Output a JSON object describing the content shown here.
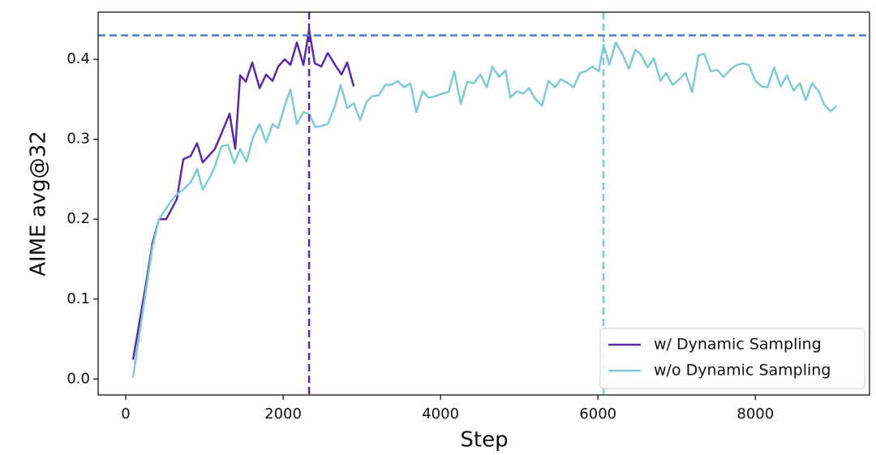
{
  "chart_data": {
    "type": "line",
    "xlabel": "Step",
    "ylabel": "AIME avg@32",
    "xlim": [
      -350,
      9450
    ],
    "ylim": [
      -0.02,
      0.459
    ],
    "xticks": [
      0,
      2000,
      4000,
      6000,
      8000
    ],
    "yticks": [
      {
        "value": 0,
        "label": "0.0"
      },
      0.1,
      0.2,
      0.3,
      0.4
    ],
    "legend": "lower right",
    "hlines": [
      {
        "value": 0.43,
        "color": "#4a7fcf"
      }
    ],
    "vlines": [
      {
        "value": 2330,
        "color": "#5b2aa6"
      },
      {
        "value": 6070,
        "color": "#7ecad6"
      }
    ],
    "series": [
      {
        "name": "w/ Dynamic Sampling",
        "color": "#5b2aa6",
        "x": [
          93,
          258,
          340,
          423,
          515,
          650,
          732,
          825,
          907,
          979,
          1134,
          1237,
          1320,
          1392,
          1454,
          1526,
          1608,
          1701,
          1784,
          1866,
          1938,
          2021,
          2093,
          2175,
          2258,
          2330,
          2402,
          2485,
          2567,
          2660,
          2742,
          2814,
          2897
        ],
        "values": [
          0.024,
          0.119,
          0.17,
          0.2,
          0.2,
          0.225,
          0.275,
          0.279,
          0.295,
          0.271,
          0.288,
          0.312,
          0.332,
          0.288,
          0.38,
          0.372,
          0.396,
          0.364,
          0.381,
          0.373,
          0.391,
          0.4,
          0.393,
          0.421,
          0.393,
          0.437,
          0.395,
          0.391,
          0.408,
          0.393,
          0.381,
          0.396,
          0.366
        ]
      },
      {
        "name": "w/o Dynamic Sampling",
        "color": "#7ecad6",
        "x": [
          93,
          340,
          423,
          567,
          649,
          732,
          825,
          907,
          979,
          1062,
          1134,
          1216,
          1299,
          1381,
          1454,
          1536,
          1619,
          1701,
          1784,
          1866,
          1938,
          2021,
          2093,
          2175,
          2258,
          2330,
          2412,
          2495,
          2567,
          2649,
          2732,
          2814,
          2897,
          2979,
          3062,
          3134,
          3216,
          3299,
          3381,
          3454,
          3536,
          3619,
          3691,
          3773,
          3856,
          3938,
          4021,
          4103,
          4175,
          4258,
          4340,
          4423,
          4505,
          4588,
          4660,
          4742,
          4825,
          4887,
          4969,
          5052,
          5124,
          5206,
          5289,
          5371,
          5454,
          5526,
          5608,
          5691,
          5773,
          5845,
          5928,
          6010,
          6072,
          6144,
          6227,
          6309,
          6392,
          6474,
          6546,
          6629,
          6711,
          6794,
          6866,
          6948,
          7031,
          7113,
          7196,
          7278,
          7350,
          7433,
          7515,
          7598,
          7680,
          7763,
          7845,
          7917,
          8000,
          8082,
          8155,
          8237,
          8320,
          8402,
          8485,
          8567,
          8639,
          8722,
          8804,
          8876,
          8959,
          9031
        ],
        "values": [
          0.002,
          0.165,
          0.2,
          0.221,
          0.231,
          0.237,
          0.246,
          0.263,
          0.237,
          0.251,
          0.266,
          0.291,
          0.293,
          0.27,
          0.288,
          0.272,
          0.303,
          0.319,
          0.296,
          0.319,
          0.314,
          0.342,
          0.362,
          0.319,
          0.334,
          0.332,
          0.315,
          0.317,
          0.319,
          0.339,
          0.368,
          0.339,
          0.345,
          0.324,
          0.347,
          0.354,
          0.355,
          0.368,
          0.368,
          0.373,
          0.365,
          0.37,
          0.334,
          0.36,
          0.352,
          0.354,
          0.357,
          0.359,
          0.385,
          0.344,
          0.372,
          0.37,
          0.381,
          0.365,
          0.391,
          0.378,
          0.386,
          0.352,
          0.36,
          0.357,
          0.364,
          0.35,
          0.342,
          0.373,
          0.365,
          0.375,
          0.371,
          0.365,
          0.383,
          0.385,
          0.391,
          0.385,
          0.418,
          0.393,
          0.421,
          0.407,
          0.388,
          0.412,
          0.406,
          0.39,
          0.401,
          0.373,
          0.383,
          0.368,
          0.375,
          0.383,
          0.359,
          0.405,
          0.407,
          0.385,
          0.387,
          0.378,
          0.387,
          0.393,
          0.395,
          0.393,
          0.373,
          0.366,
          0.365,
          0.39,
          0.366,
          0.38,
          0.361,
          0.37,
          0.349,
          0.37,
          0.36,
          0.343,
          0.335,
          0.342
        ]
      }
    ]
  }
}
